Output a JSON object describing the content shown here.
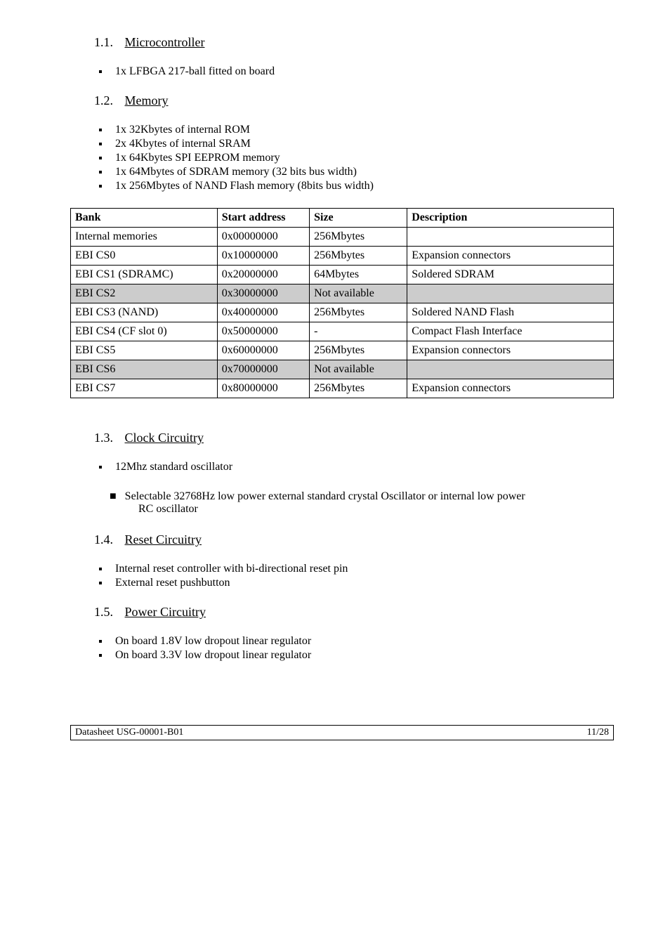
{
  "sec": {
    "micro": {
      "num": "1.1.",
      "title": "Microcontroller"
    },
    "memory": {
      "num": "1.2.",
      "title": "Memory"
    },
    "clock": {
      "num": "1.3.",
      "title": "Clock Circuitry"
    },
    "reset": {
      "num": "1.4.",
      "title": "Reset Circuitry"
    },
    "power": {
      "num": "1.5.",
      "title": "Power Circuitry"
    }
  },
  "micro_items": [
    "1x LFBGA 217-ball fitted on board"
  ],
  "memory_items": [
    "1x 32Kbytes of internal ROM",
    "2x 4Kbytes of internal SRAM",
    "1x 64Kbytes SPI EEPROM memory",
    "1x 64Mbytes of SDRAM memory (32 bits bus width)",
    "1x 256Mbytes of NAND Flash memory (8bits bus width)"
  ],
  "table": {
    "headers": {
      "bank": "Bank",
      "start": "Start address",
      "size": "Size",
      "desc": "Description"
    },
    "rows": [
      {
        "bank": "Internal memories",
        "start": "0x00000000",
        "size": "256Mbytes",
        "desc": "",
        "shade": false
      },
      {
        "bank": "EBI CS0",
        "start": "0x10000000",
        "size": "256Mbytes",
        "desc": "Expansion connectors",
        "shade": false
      },
      {
        "bank": "EBI CS1 (SDRAMC)",
        "start": "0x20000000",
        "size": "64Mbytes",
        "desc": "Soldered SDRAM",
        "shade": false
      },
      {
        "bank": "EBI CS2",
        "start": "0x30000000",
        "size": "Not available",
        "desc": "",
        "shade": true
      },
      {
        "bank": "EBI CS3 (NAND)",
        "start": "0x40000000",
        "size": "256Mbytes",
        "desc": "Soldered NAND Flash",
        "shade": false
      },
      {
        "bank": "EBI CS4 (CF slot 0)",
        "start": "0x50000000",
        "size": "-",
        "desc": "Compact Flash Interface",
        "shade": false
      },
      {
        "bank": "EBI CS5",
        "start": "0x60000000",
        "size": "256Mbytes",
        "desc": "Expansion connectors",
        "shade": false
      },
      {
        "bank": "EBI CS6",
        "start": "0x70000000",
        "size": "Not available",
        "desc": "",
        "shade": true
      },
      {
        "bank": "EBI CS7",
        "start": "0x80000000",
        "size": "256Mbytes",
        "desc": "Expansion connectors",
        "shade": false
      }
    ]
  },
  "clock_items": {
    "first": "12Mhz standard oscillator",
    "second_a": "Selectable 32768Hz low power external standard crystal Oscillator or internal low power",
    "second_b": "RC oscillator"
  },
  "reset_items": [
    "Internal reset controller with bi-directional reset pin",
    "External reset pushbutton"
  ],
  "power_items": [
    "On board 1.8V low dropout linear regulator",
    "On board 3.3V low dropout linear regulator"
  ],
  "footer": {
    "left": "Datasheet USG-00001-B01",
    "right": "11/28"
  }
}
